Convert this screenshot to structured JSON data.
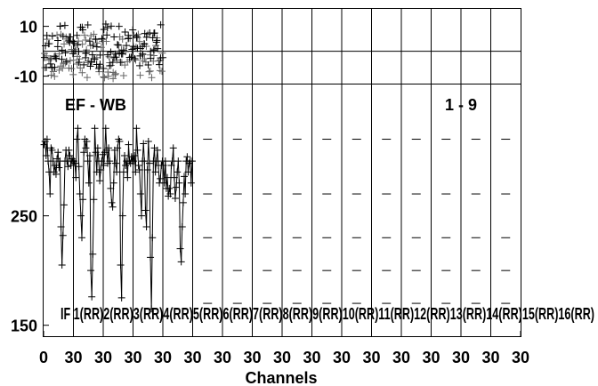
{
  "chart_data": [
    {
      "panel": "top",
      "type": "scatter",
      "ylim": [
        -13,
        17
      ],
      "ytick_labels": [
        "10",
        "-10"
      ],
      "ytick_values": [
        10,
        -10
      ],
      "reference_line_y": 0,
      "num_channels": 30,
      "num_basebands": 16,
      "channel_tick_step": 30,
      "series": [
        {
          "color": "#000000",
          "channels_per_baseband": [
            [
              0,
              30
            ]
          ],
          "pattern": "phase"
        }
      ]
    },
    {
      "panel": "bottom",
      "type": "line",
      "ylim": [
        140,
        370
      ],
      "ytick_labels": [
        "250",
        "150"
      ],
      "ytick_values": [
        250,
        150
      ],
      "label_left": "EF - WB",
      "label_right": "1 - 9",
      "baseband_labels": [
        "IF 1(RR)",
        "IF 2(RR)",
        "IF 3(RR)",
        "IF 4(RR)",
        "IF 5(RR)",
        "IF 6(RR)",
        "IF 7(RR)",
        "IF 8(RR)",
        "IF 9(RR)",
        "IF 10(RR)",
        "IF 11(RR)",
        "IF 12(RR)",
        "IF 13(RR)",
        "IF 14(RR)",
        "IF 15(RR)",
        "IF 16(RR)"
      ],
      "baseband_label_text": "IF 1(RR)2(RR)3(RR)4(RR)5(RR)6(RR)7(RR)8(RR)9(RR)10(RR)11(RR)12(RR)13(RR)14(RR)15(RR)16(RR)",
      "basebands_with_data": 5,
      "amplitude_typical": [
        [
          315,
          318,
          305,
          320,
          300,
          290,
          270,
          312,
          310,
          300,
          290,
          296,
          288,
          302,
          308,
          294,
          300,
          240,
          205,
          232,
          260,
          300,
          310,
          300,
          295,
          310,
          305,
          296,
          302,
          300
        ],
        [
          300,
          298,
          285,
          320,
          330,
          295,
          270,
          250,
          230,
          265,
          308,
          320,
          312,
          318,
          300,
          280,
          305,
          200,
          176,
          215,
          265,
          330,
          308,
          290,
          312,
          300,
          282,
          292,
          300,
          306
        ],
        [
          296,
          308,
          330,
          310,
          298,
          312,
          300,
          275,
          262,
          258,
          280,
          310,
          298,
          290,
          312,
          320,
          318,
          205,
          175,
          250,
          290,
          305,
          296,
          300,
          285,
          315,
          300,
          298,
          304,
          300
        ],
        [
          300,
          305,
          290,
          330,
          310,
          296,
          292,
          270,
          250,
          300,
          316,
          300,
          255,
          240,
          292,
          318,
          298,
          212,
          165,
          230,
          300,
          312,
          290,
          300,
          310,
          296,
          280,
          284,
          296,
          300
        ],
        [
          296,
          280,
          300,
          275,
          285,
          268,
          275,
          270,
          296,
          300,
          312,
          285,
          266,
          276,
          290,
          300,
          280,
          220,
          208,
          240,
          262,
          286,
          270,
          300,
          304,
          290,
          298,
          300,
          280,
          300
        ]
      ],
      "xlabel": "Channels",
      "xtick_labels": [
        "0",
        "30",
        "30",
        "30",
        "30",
        "30",
        "30",
        "30",
        "30",
        "30",
        "30",
        "30",
        "30",
        "30",
        "30",
        "30",
        "30"
      ]
    }
  ]
}
